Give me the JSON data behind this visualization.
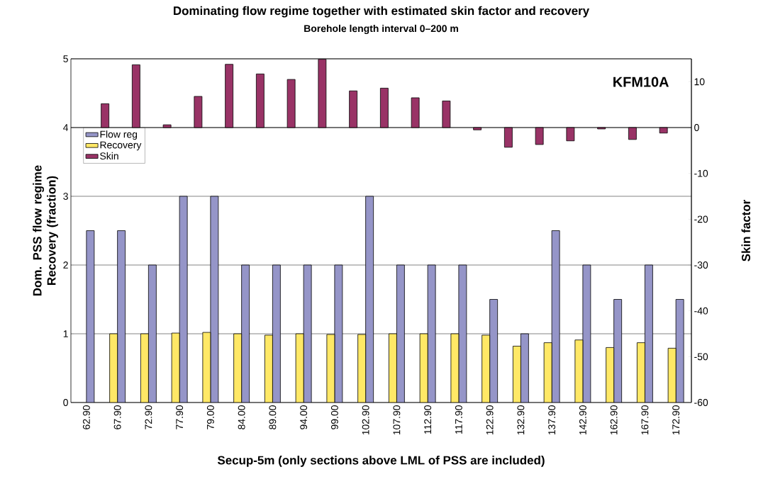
{
  "chart_data": {
    "type": "bar",
    "title": "Dominating flow regime together with estimated skin factor and recovery",
    "subtitle": "Borehole length interval 0–200 m",
    "xlabel": "Secup-5m (only sections above LML of PSS are included)",
    "ylabel": "Dom. PSS flow regime Recovery (fraction)",
    "y2label": "Skin factor",
    "annotations": [
      "KFM10A"
    ],
    "categories": [
      "62.90",
      "67.90",
      "72.90",
      "77.90",
      "79.00",
      "84.00",
      "89.00",
      "94.00",
      "99.00",
      "102.90",
      "107.90",
      "112.90",
      "117.90",
      "122.90",
      "132.90",
      "137.90",
      "142.90",
      "162.90",
      "167.90",
      "172.90"
    ],
    "series": [
      {
        "name": "Flow reg",
        "color": "#9595c8",
        "values": [
          2.5,
          2.5,
          2,
          3,
          3,
          2,
          2,
          2,
          2,
          3,
          2,
          2,
          2,
          1.5,
          1,
          2.5,
          2,
          1.5,
          2,
          1.5
        ]
      },
      {
        "name": "Recovery",
        "color": "#ffe866",
        "values": [
          null,
          1.0,
          1.0,
          1.01,
          1.02,
          1.0,
          0.98,
          1.0,
          0.99,
          0.99,
          1.0,
          1.0,
          1.0,
          0.98,
          0.82,
          0.87,
          0.91,
          0.8,
          0.87,
          0.79
        ]
      },
      {
        "name": "Skin",
        "color": "#993366",
        "axis": "y2",
        "values": [
          null,
          5.2,
          13.7,
          0.6,
          6.8,
          13.8,
          11.7,
          10.5,
          14.9,
          8.0,
          8.6,
          6.5,
          5.8,
          -0.5,
          -4.3,
          -3.7,
          -2.9,
          -0.3,
          -2.6,
          -1.2
        ]
      }
    ],
    "ylim": [
      0,
      5
    ],
    "yticks": [
      0,
      1,
      2,
      3,
      4,
      5
    ],
    "y2lim": [
      -60,
      15
    ],
    "y2ticks": [
      -60,
      -50,
      -40,
      -30,
      -20,
      -10,
      0,
      10
    ],
    "grid": "y",
    "legend": "top left"
  }
}
